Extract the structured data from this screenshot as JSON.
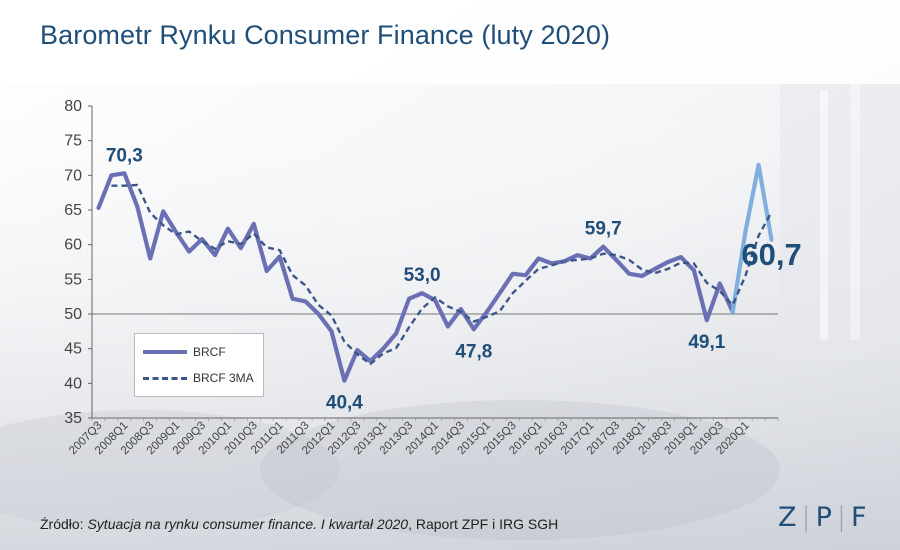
{
  "title": "Barometr Rynku Consumer Finance (luty 2020)",
  "source": {
    "prefix": "Źródło: ",
    "report": "Sytuacja na rynku consumer finance. I kwartał 2020",
    "suffix": ", Raport ZPF i IRG SGH"
  },
  "logo": {
    "letters": [
      "Z",
      "P",
      "F"
    ]
  },
  "colors": {
    "title": "#1f4e79",
    "brcf": "#6b6fb3",
    "brcf_recent": "#7fb0dd",
    "ma": "#3b5788",
    "annotation": "#1f4e79"
  },
  "chart_data": {
    "type": "line",
    "title": "Barometr Rynku Consumer Finance (luty 2020)",
    "xlabel": "",
    "ylabel": "",
    "ylim": [
      35,
      80
    ],
    "yticks": [
      35,
      40,
      45,
      50,
      55,
      60,
      65,
      70,
      75,
      80
    ],
    "reference_line": 50,
    "grid": false,
    "legend_placement": "lower-left",
    "x_tick_labels": [
      "2007Q3",
      "2008Q1",
      "2008Q3",
      "2009Q1",
      "2009Q3",
      "2010Q1",
      "2010Q3",
      "2011Q1",
      "2011Q3",
      "2012Q1",
      "2012Q3",
      "2013Q1",
      "2013Q3",
      "2014Q1",
      "2014Q3",
      "2015Q1",
      "2015Q3",
      "2016Q1",
      "2016Q3",
      "2017Q1",
      "2017Q3",
      "2018Q1",
      "2018Q3",
      "2019Q1",
      "2019Q3",
      "2020Q1"
    ],
    "series": [
      {
        "name": "BRCF",
        "values": [
          65.3,
          70.0,
          70.3,
          65.5,
          58.0,
          64.8,
          61.8,
          59.0,
          60.8,
          58.5,
          62.3,
          59.5,
          63.0,
          56.2,
          58.3,
          52.2,
          51.8,
          50.0,
          47.5,
          40.4,
          44.8,
          43.2,
          45.0,
          47.2,
          52.2,
          53.0,
          52.0,
          48.2,
          50.7,
          47.8,
          50.3,
          53.0,
          55.8,
          55.6,
          58.0,
          57.3,
          57.6,
          58.5,
          58.0,
          59.7,
          57.8,
          55.8,
          55.5,
          56.5,
          57.5,
          58.2,
          56.3,
          49.1,
          54.4,
          50.3,
          62.0,
          71.5,
          60.7
        ],
        "recent_from_index": 49
      },
      {
        "name": "BRCF 3MA",
        "values": [
          null,
          68.5,
          68.5,
          68.6,
          64.6,
          62.8,
          61.5,
          61.9,
          60.5,
          59.4,
          60.5,
          60.1,
          61.6,
          59.6,
          59.2,
          55.6,
          54.1,
          51.3,
          49.8,
          46.0,
          44.2,
          42.8,
          44.3,
          45.1,
          48.1,
          50.8,
          52.4,
          51.1,
          50.3,
          48.9,
          49.6,
          50.4,
          53.0,
          54.8,
          56.5,
          57.0,
          57.6,
          57.8,
          58.0,
          58.7,
          58.5,
          57.8,
          56.4,
          55.9,
          56.5,
          57.4,
          57.3,
          54.5,
          53.3,
          51.3,
          55.6,
          61.3,
          64.7
        ]
      }
    ],
    "annotations": [
      {
        "text": "70,3",
        "index": 2,
        "value": 70.3,
        "pos": "above"
      },
      {
        "text": "40,4",
        "index": 19,
        "value": 40.4,
        "pos": "below"
      },
      {
        "text": "53,0",
        "index": 25,
        "value": 53.0,
        "pos": "above"
      },
      {
        "text": "47,8",
        "index": 29,
        "value": 47.8,
        "pos": "below"
      },
      {
        "text": "59,7",
        "index": 39,
        "value": 59.7,
        "pos": "above"
      },
      {
        "text": "49,1",
        "index": 47,
        "value": 49.1,
        "pos": "below"
      },
      {
        "text": "60,7",
        "index": 52,
        "value": 60.7,
        "pos": "big"
      }
    ],
    "legend": [
      "BRCF",
      "BRCF 3MA"
    ]
  }
}
